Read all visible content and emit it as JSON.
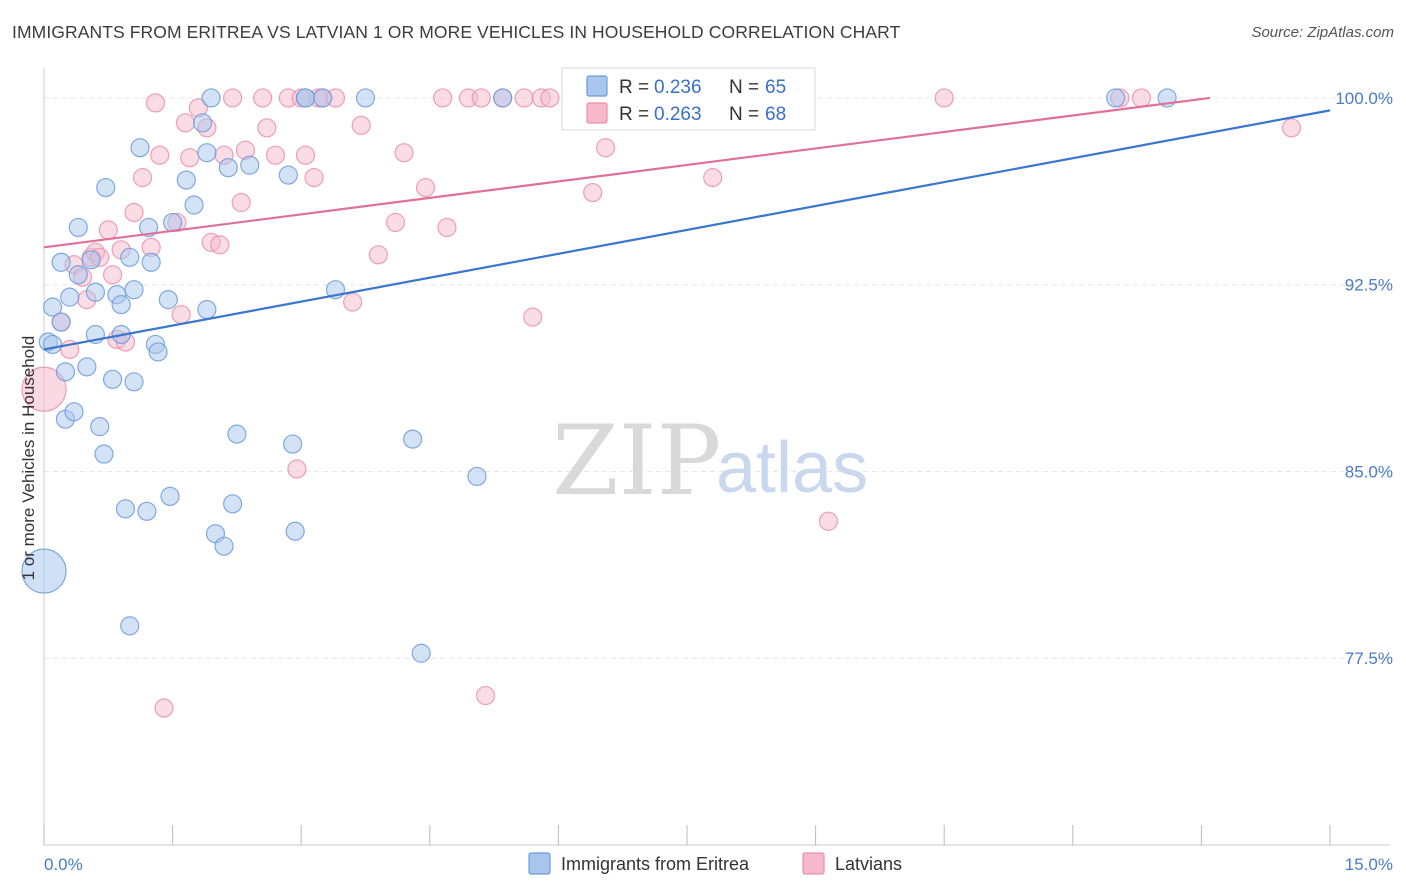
{
  "title": "IMMIGRANTS FROM ERITREA VS LATVIAN 1 OR MORE VEHICLES IN HOUSEHOLD CORRELATION CHART",
  "source": "Source: ZipAtlas.com",
  "watermark": {
    "zip": "ZIP",
    "atlas": "atlas"
  },
  "colors": {
    "blue_fill": "#a9c6ee",
    "blue_stroke": "#6c9bdc",
    "blue_line": "#3a76d0",
    "pink_fill": "#f6b9cc",
    "pink_stroke": "#ea8fae",
    "pink_line": "#e0709a",
    "tick_text": "#4a7cc7",
    "grid": "#e6e6e6"
  },
  "legend": {
    "rows": [
      {
        "r_label": "R = ",
        "r_value": "0.236",
        "n_label": "N = ",
        "n_value": "65"
      },
      {
        "r_label": "R = ",
        "r_value": "0.263",
        "n_label": "N = ",
        "n_value": "68"
      }
    ]
  },
  "bottom_legend": [
    "Immigrants from Eritrea",
    "Latvians"
  ],
  "chart_data": {
    "type": "scatter",
    "title": "IMMIGRANTS FROM ERITREA VS LATVIAN 1 OR MORE VEHICLES IN HOUSEHOLD CORRELATION CHART",
    "xlabel": "",
    "ylabel": "1 or more Vehicles in Household",
    "xlim": [
      0,
      15
    ],
    "ylim": [
      70.0,
      100.8
    ],
    "x_tick_labels": [
      "0.0%",
      "15.0%"
    ],
    "x_ticks": [
      0,
      15
    ],
    "x_minor_ticks": [
      0,
      1.5,
      3,
      4.5,
      6,
      7.5,
      9,
      10.5,
      12,
      13.5,
      15
    ],
    "y_ticks": [
      77.5,
      85.0,
      92.5,
      100.0
    ],
    "y_tick_labels": [
      "77.5%",
      "85.0%",
      "92.5%",
      "100.0%"
    ],
    "grid": "horizontal-dashed",
    "legend_position": "top-center",
    "series": [
      {
        "name": "Immigrants from Eritrea",
        "color": "blue",
        "trend": {
          "x": [
            0,
            15
          ],
          "y": [
            89.9,
            99.5
          ]
        },
        "points": [
          [
            0.05,
            90.2
          ],
          [
            0.0,
            81.0
          ],
          [
            0.1,
            91.6
          ],
          [
            0.1,
            90.1
          ],
          [
            0.2,
            93.4
          ],
          [
            0.2,
            91.0
          ],
          [
            0.25,
            89.0
          ],
          [
            0.25,
            87.1
          ],
          [
            0.3,
            92.0
          ],
          [
            0.35,
            87.4
          ],
          [
            0.4,
            94.8
          ],
          [
            0.4,
            92.9
          ],
          [
            0.5,
            89.2
          ],
          [
            0.55,
            93.5
          ],
          [
            0.6,
            90.5
          ],
          [
            0.6,
            92.2
          ],
          [
            0.65,
            86.8
          ],
          [
            0.7,
            85.7
          ],
          [
            0.72,
            96.4
          ],
          [
            0.8,
            88.7
          ],
          [
            0.85,
            92.1
          ],
          [
            0.9,
            91.7
          ],
          [
            0.9,
            90.5
          ],
          [
            0.95,
            83.5
          ],
          [
            1.0,
            93.6
          ],
          [
            1.0,
            78.8
          ],
          [
            1.05,
            92.3
          ],
          [
            1.05,
            88.6
          ],
          [
            1.12,
            98.0
          ],
          [
            1.2,
            83.4
          ],
          [
            1.22,
            94.8
          ],
          [
            1.25,
            93.4
          ],
          [
            1.3,
            90.1
          ],
          [
            1.33,
            89.8
          ],
          [
            1.45,
            91.9
          ],
          [
            1.47,
            84.0
          ],
          [
            1.5,
            95.0
          ],
          [
            1.66,
            96.7
          ],
          [
            1.75,
            95.7
          ],
          [
            1.85,
            99.0
          ],
          [
            1.9,
            97.8
          ],
          [
            1.9,
            91.5
          ],
          [
            1.95,
            100.0
          ],
          [
            2.0,
            82.5
          ],
          [
            2.1,
            82.0
          ],
          [
            2.15,
            97.2
          ],
          [
            2.2,
            83.7
          ],
          [
            2.25,
            86.5
          ],
          [
            2.4,
            97.3
          ],
          [
            2.85,
            96.9
          ],
          [
            2.9,
            86.1
          ],
          [
            2.93,
            82.6
          ],
          [
            3.05,
            100.0
          ],
          [
            3.05,
            100.0
          ],
          [
            3.25,
            100.0
          ],
          [
            3.4,
            92.3
          ],
          [
            3.75,
            100.0
          ],
          [
            4.3,
            86.3
          ],
          [
            4.4,
            77.7
          ],
          [
            5.05,
            84.8
          ],
          [
            5.35,
            100.0
          ],
          [
            6.55,
            100.0
          ],
          [
            6.6,
            100.0
          ],
          [
            12.5,
            100.0
          ],
          [
            13.1,
            100.0
          ]
        ],
        "large_point": [
          0.0,
          81.0
        ]
      },
      {
        "name": "Latvians",
        "color": "pink",
        "trend": {
          "x": [
            0,
            13.6
          ],
          "y": [
            94.0,
            100.0
          ]
        },
        "points": [
          [
            0.0,
            88.3
          ],
          [
            0.2,
            91.0
          ],
          [
            0.3,
            89.9
          ],
          [
            0.35,
            93.3
          ],
          [
            0.45,
            92.8
          ],
          [
            0.5,
            91.9
          ],
          [
            0.55,
            93.6
          ],
          [
            0.6,
            93.8
          ],
          [
            0.65,
            93.6
          ],
          [
            0.75,
            94.7
          ],
          [
            0.8,
            92.9
          ],
          [
            0.85,
            90.3
          ],
          [
            0.9,
            93.9
          ],
          [
            0.95,
            90.2
          ],
          [
            1.05,
            95.4
          ],
          [
            1.15,
            96.8
          ],
          [
            1.25,
            94.0
          ],
          [
            1.3,
            99.8
          ],
          [
            1.35,
            97.7
          ],
          [
            1.4,
            75.5
          ],
          [
            1.55,
            95.0
          ],
          [
            1.6,
            91.3
          ],
          [
            1.65,
            99.0
          ],
          [
            1.7,
            97.6
          ],
          [
            1.8,
            99.6
          ],
          [
            1.9,
            98.8
          ],
          [
            1.95,
            94.2
          ],
          [
            2.05,
            94.1
          ],
          [
            2.1,
            97.7
          ],
          [
            2.2,
            100.0
          ],
          [
            2.3,
            95.8
          ],
          [
            2.35,
            97.9
          ],
          [
            2.55,
            100.0
          ],
          [
            2.6,
            98.8
          ],
          [
            2.7,
            97.7
          ],
          [
            2.85,
            100.0
          ],
          [
            2.95,
            85.1
          ],
          [
            3.0,
            100.0
          ],
          [
            3.05,
            97.7
          ],
          [
            3.15,
            96.8
          ],
          [
            3.2,
            100.0
          ],
          [
            3.25,
            100.0
          ],
          [
            3.4,
            100.0
          ],
          [
            3.6,
            91.8
          ],
          [
            3.7,
            98.9
          ],
          [
            3.9,
            93.7
          ],
          [
            4.1,
            95.0
          ],
          [
            4.2,
            97.8
          ],
          [
            4.45,
            96.4
          ],
          [
            4.65,
            100.0
          ],
          [
            4.7,
            94.8
          ],
          [
            4.95,
            100.0
          ],
          [
            5.1,
            100.0
          ],
          [
            5.15,
            76.0
          ],
          [
            5.35,
            100.0
          ],
          [
            5.6,
            100.0
          ],
          [
            5.7,
            91.2
          ],
          [
            5.8,
            100.0
          ],
          [
            5.9,
            100.0
          ],
          [
            6.4,
            96.2
          ],
          [
            6.55,
            98.0
          ],
          [
            7.3,
            100.0
          ],
          [
            7.8,
            96.8
          ],
          [
            9.15,
            83.0
          ],
          [
            10.5,
            100.0
          ],
          [
            12.55,
            100.0
          ],
          [
            12.8,
            100.0
          ],
          [
            14.55,
            98.8
          ]
        ],
        "large_point": [
          0.0,
          88.3
        ]
      }
    ]
  }
}
